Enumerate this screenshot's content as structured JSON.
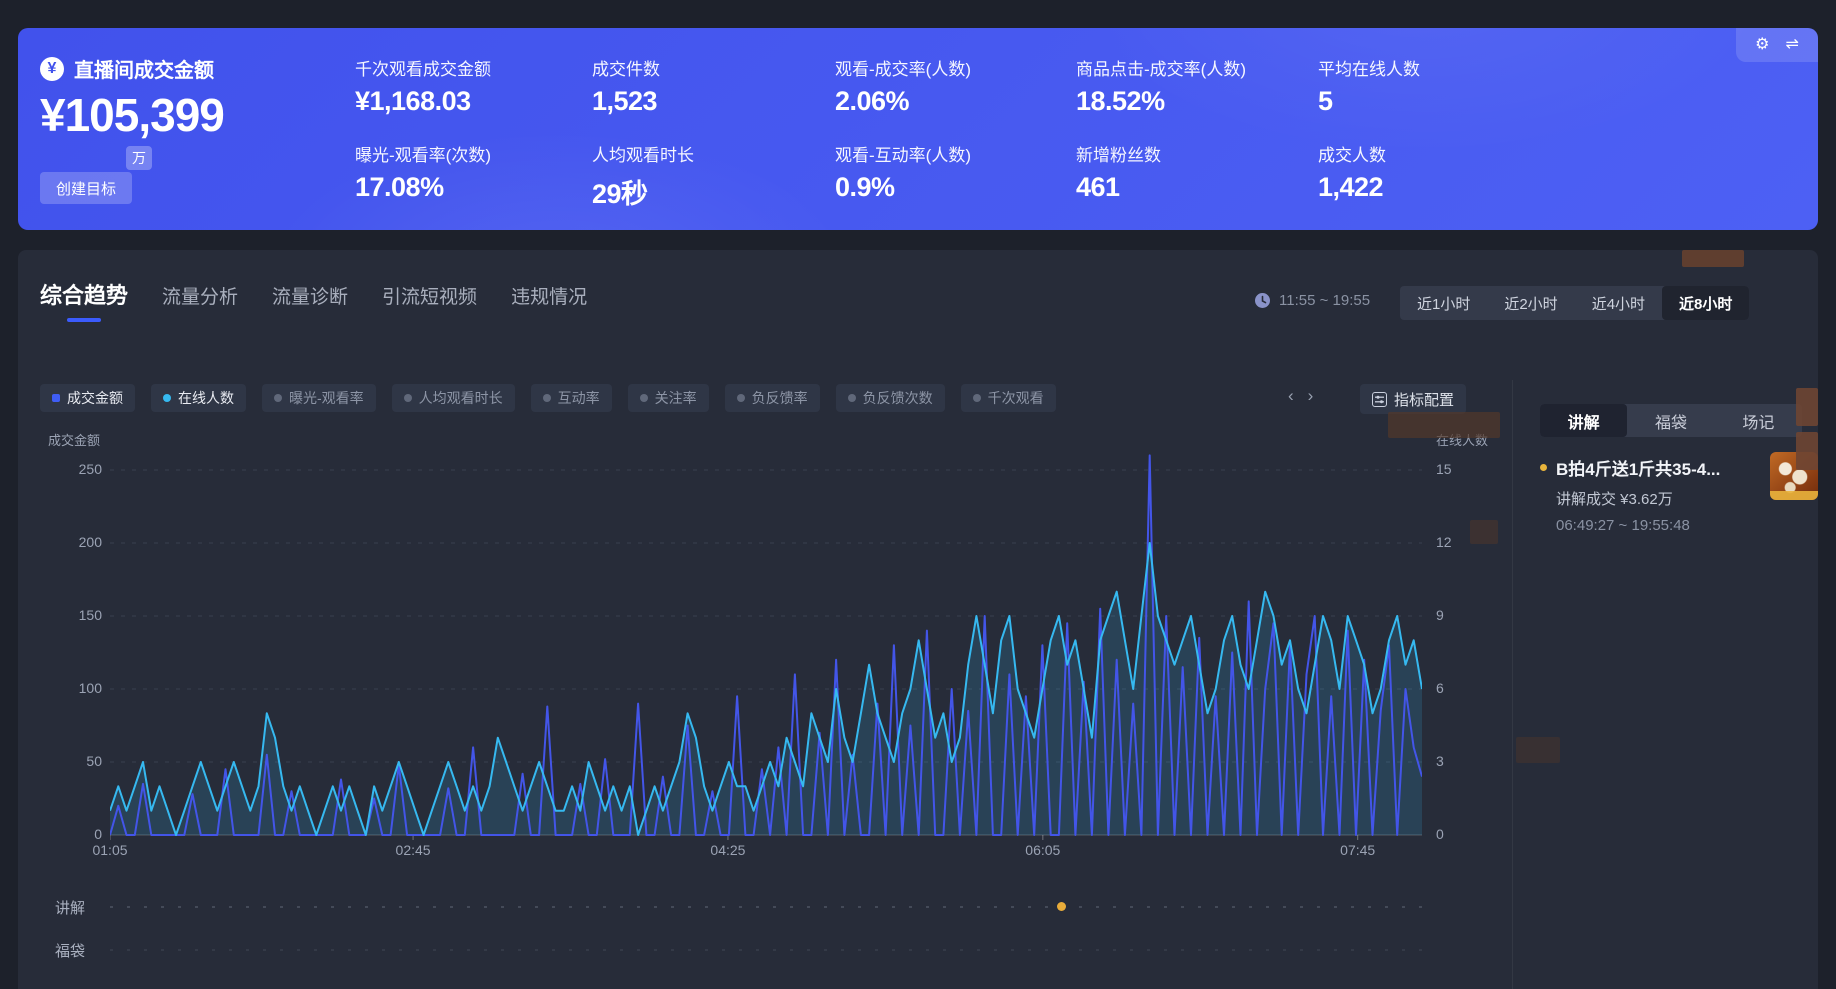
{
  "banner": {
    "title": "直播间成交金额",
    "main_value": "¥105,399",
    "main_unit": "万",
    "goal_button": "创建目标",
    "metrics": [
      {
        "label": "千次观看成交金额",
        "value": "¥1,168.03"
      },
      {
        "label": "成交件数",
        "value": "1,523"
      },
      {
        "label": "观看-成交率(人数)",
        "value": "2.06%"
      },
      {
        "label": "商品点击-成交率(人数)",
        "value": "18.52%"
      },
      {
        "label": "平均在线人数",
        "value": "5"
      },
      {
        "label": "曝光-观看率(次数)",
        "value": "17.08%"
      },
      {
        "label": "人均观看时长",
        "value": "29秒"
      },
      {
        "label": "观看-互动率(人数)",
        "value": "0.9%"
      },
      {
        "label": "新增粉丝数",
        "value": "461"
      },
      {
        "label": "成交人数",
        "value": "1,422"
      }
    ]
  },
  "nav": {
    "tabs": [
      {
        "label": "综合趋势",
        "active": true
      },
      {
        "label": "流量分析",
        "active": false
      },
      {
        "label": "流量诊断",
        "active": false
      },
      {
        "label": "引流短视频",
        "active": false
      },
      {
        "label": "违规情况",
        "active": false
      }
    ]
  },
  "time": {
    "range": "11:55 ~ 19:55",
    "buttons": [
      {
        "label": "近1小时",
        "active": false
      },
      {
        "label": "近2小时",
        "active": false
      },
      {
        "label": "近4小时",
        "active": false
      },
      {
        "label": "近8小时",
        "active": true
      }
    ]
  },
  "chips": [
    {
      "label": "成交金额",
      "active": true,
      "marker": "square",
      "color": "#3f5df5"
    },
    {
      "label": "在线人数",
      "active": true,
      "marker": "circle",
      "color": "#36b9f0"
    },
    {
      "label": "曝光-观看率",
      "active": false
    },
    {
      "label": "人均观看时长",
      "active": false
    },
    {
      "label": "互动率",
      "active": false
    },
    {
      "label": "关注率",
      "active": false
    },
    {
      "label": "负反馈率",
      "active": false
    },
    {
      "label": "负反馈次数",
      "active": false
    },
    {
      "label": "千次观看",
      "active": false,
      "clipped": true
    }
  ],
  "toolbar": {
    "prev": "‹",
    "next": "›",
    "config_label": "指标配置"
  },
  "panel": {
    "tabs": [
      {
        "label": "讲解",
        "active": true
      },
      {
        "label": "福袋",
        "active": false
      },
      {
        "label": "场记",
        "active": false
      }
    ],
    "item": {
      "title": "B拍4斤送1斤共35-4...",
      "deal": "讲解成交 ¥3.62万",
      "time": "06:49:27 ~ 19:55:48"
    }
  },
  "chart": {
    "left_axis": {
      "label": "成交金额",
      "max": 250,
      "ticks": [
        "250",
        "200",
        "150",
        "100",
        "50",
        "0"
      ]
    },
    "right_axis": {
      "label": "在线人数",
      "max": 15,
      "ticks": [
        "15",
        "12",
        "9",
        "6",
        "3",
        "0"
      ]
    },
    "x_ticks": [
      {
        "label": "01:05",
        "f": 0
      },
      {
        "label": "02:45",
        "f": 0.231
      },
      {
        "label": "04:25",
        "f": 0.471
      },
      {
        "label": "06:05",
        "f": 0.711
      },
      {
        "label": "07:45",
        "f": 0.951
      }
    ],
    "series": [
      {
        "name": "成交金额",
        "axis": "left",
        "color": "#4355e8",
        "max": 250,
        "values": [
          0,
          20,
          0,
          0,
          35,
          0,
          0,
          0,
          0,
          0,
          28,
          0,
          0,
          0,
          45,
          0,
          0,
          0,
          0,
          55,
          0,
          0,
          30,
          0,
          0,
          0,
          0,
          0,
          38,
          0,
          0,
          0,
          25,
          0,
          0,
          48,
          0,
          0,
          0,
          0,
          0,
          32,
          0,
          0,
          60,
          0,
          0,
          0,
          0,
          0,
          42,
          0,
          0,
          88,
          0,
          0,
          0,
          35,
          0,
          0,
          52,
          0,
          0,
          0,
          90,
          0,
          0,
          40,
          0,
          0,
          75,
          0,
          0,
          30,
          0,
          0,
          95,
          0,
          0,
          45,
          0,
          60,
          0,
          110,
          0,
          0,
          70,
          0,
          120,
          0,
          55,
          0,
          0,
          90,
          0,
          130,
          0,
          75,
          0,
          140,
          0,
          0,
          100,
          0,
          85,
          0,
          150,
          0,
          0,
          110,
          0,
          95,
          0,
          130,
          0,
          0,
          145,
          0,
          105,
          0,
          155,
          0,
          120,
          0,
          90,
          0,
          260,
          0,
          150,
          0,
          115,
          0,
          135,
          0,
          95,
          0,
          125,
          0,
          160,
          0,
          100,
          145,
          0,
          130,
          0,
          110,
          150,
          0,
          95,
          0,
          140,
          0,
          120,
          0,
          85,
          130,
          0,
          100,
          60,
          40
        ]
      },
      {
        "name": "在线人数",
        "axis": "right",
        "color": "#36b9f0",
        "fill": "rgba(54,185,240,0.16)",
        "max": 15,
        "values": [
          1,
          2,
          1,
          2,
          3,
          1,
          2,
          1,
          0,
          1,
          2,
          3,
          2,
          1,
          2,
          3,
          2,
          1,
          2,
          5,
          4,
          2,
          1,
          2,
          1,
          0,
          1,
          2,
          1,
          2,
          1,
          0,
          2,
          1,
          2,
          3,
          2,
          1,
          0,
          1,
          2,
          3,
          2,
          1,
          2,
          1,
          2,
          4,
          3,
          2,
          1,
          2,
          3,
          2,
          1,
          1,
          2,
          1,
          3,
          2,
          1,
          2,
          1,
          2,
          0,
          1,
          2,
          1,
          2,
          3,
          5,
          4,
          2,
          1,
          2,
          3,
          2,
          2,
          1,
          2,
          3,
          2,
          4,
          3,
          2,
          5,
          4,
          3,
          6,
          4,
          3,
          5,
          7,
          5,
          4,
          3,
          5,
          6,
          8,
          6,
          4,
          5,
          3,
          4,
          7,
          9,
          7,
          5,
          8,
          9,
          6,
          5,
          4,
          6,
          8,
          9,
          7,
          8,
          6,
          4,
          8,
          9,
          10,
          8,
          6,
          9,
          12,
          9,
          8,
          7,
          8,
          9,
          7,
          5,
          6,
          8,
          9,
          7,
          6,
          8,
          10,
          9,
          7,
          8,
          6,
          5,
          7,
          9,
          8,
          6,
          9,
          8,
          7,
          5,
          6,
          8,
          9,
          7,
          8,
          6
        ]
      }
    ],
    "marker_rows": [
      {
        "label": "讲解",
        "dots": [
          0.725
        ]
      },
      {
        "label": "福袋",
        "dots": []
      }
    ]
  },
  "colors": {
    "banner_start": "#4152ec",
    "banner_end": "#4d60f4",
    "accent": "#3b5bfd",
    "page_bg": "#1d212b",
    "card_bg": "#272c39",
    "series_gmv": "#4355e8",
    "series_online": "#36b9f0",
    "marker_yellow": "#e8ac3a"
  }
}
